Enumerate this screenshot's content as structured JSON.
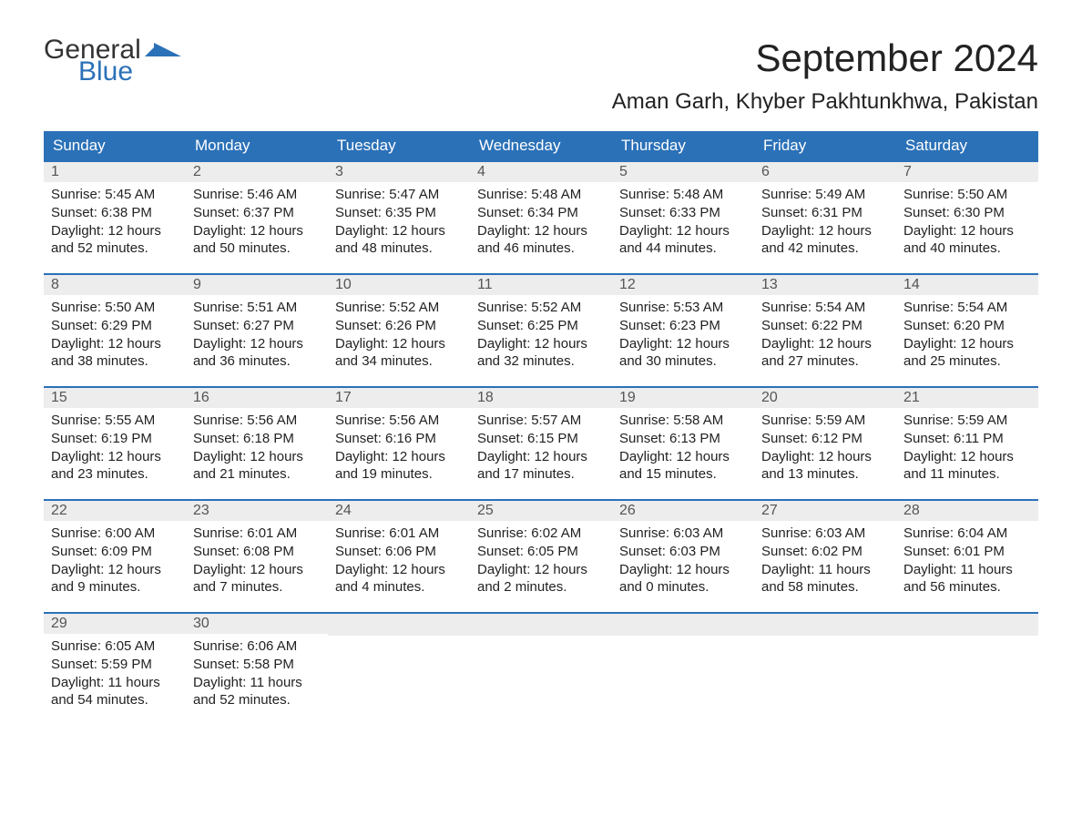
{
  "logo": {
    "general": "General",
    "blue": "Blue"
  },
  "title": "September 2024",
  "location": "Aman Garh, Khyber Pakhtunkhwa, Pakistan",
  "weekday_headers": [
    "Sunday",
    "Monday",
    "Tuesday",
    "Wednesday",
    "Thursday",
    "Friday",
    "Saturday"
  ],
  "colors": {
    "header_bg": "#2b71b8",
    "header_text": "#ffffff",
    "daynum_bg": "#ededed",
    "accent_border": "#2b71b8",
    "logo_blue": "#2b71b8"
  },
  "days": [
    {
      "n": "1",
      "sunrise": "5:45 AM",
      "sunset": "6:38 PM",
      "daylight": "12 hours and 52 minutes."
    },
    {
      "n": "2",
      "sunrise": "5:46 AM",
      "sunset": "6:37 PM",
      "daylight": "12 hours and 50 minutes."
    },
    {
      "n": "3",
      "sunrise": "5:47 AM",
      "sunset": "6:35 PM",
      "daylight": "12 hours and 48 minutes."
    },
    {
      "n": "4",
      "sunrise": "5:48 AM",
      "sunset": "6:34 PM",
      "daylight": "12 hours and 46 minutes."
    },
    {
      "n": "5",
      "sunrise": "5:48 AM",
      "sunset": "6:33 PM",
      "daylight": "12 hours and 44 minutes."
    },
    {
      "n": "6",
      "sunrise": "5:49 AM",
      "sunset": "6:31 PM",
      "daylight": "12 hours and 42 minutes."
    },
    {
      "n": "7",
      "sunrise": "5:50 AM",
      "sunset": "6:30 PM",
      "daylight": "12 hours and 40 minutes."
    },
    {
      "n": "8",
      "sunrise": "5:50 AM",
      "sunset": "6:29 PM",
      "daylight": "12 hours and 38 minutes."
    },
    {
      "n": "9",
      "sunrise": "5:51 AM",
      "sunset": "6:27 PM",
      "daylight": "12 hours and 36 minutes."
    },
    {
      "n": "10",
      "sunrise": "5:52 AM",
      "sunset": "6:26 PM",
      "daylight": "12 hours and 34 minutes."
    },
    {
      "n": "11",
      "sunrise": "5:52 AM",
      "sunset": "6:25 PM",
      "daylight": "12 hours and 32 minutes."
    },
    {
      "n": "12",
      "sunrise": "5:53 AM",
      "sunset": "6:23 PM",
      "daylight": "12 hours and 30 minutes."
    },
    {
      "n": "13",
      "sunrise": "5:54 AM",
      "sunset": "6:22 PM",
      "daylight": "12 hours and 27 minutes."
    },
    {
      "n": "14",
      "sunrise": "5:54 AM",
      "sunset": "6:20 PM",
      "daylight": "12 hours and 25 minutes."
    },
    {
      "n": "15",
      "sunrise": "5:55 AM",
      "sunset": "6:19 PM",
      "daylight": "12 hours and 23 minutes."
    },
    {
      "n": "16",
      "sunrise": "5:56 AM",
      "sunset": "6:18 PM",
      "daylight": "12 hours and 21 minutes."
    },
    {
      "n": "17",
      "sunrise": "5:56 AM",
      "sunset": "6:16 PM",
      "daylight": "12 hours and 19 minutes."
    },
    {
      "n": "18",
      "sunrise": "5:57 AM",
      "sunset": "6:15 PM",
      "daylight": "12 hours and 17 minutes."
    },
    {
      "n": "19",
      "sunrise": "5:58 AM",
      "sunset": "6:13 PM",
      "daylight": "12 hours and 15 minutes."
    },
    {
      "n": "20",
      "sunrise": "5:59 AM",
      "sunset": "6:12 PM",
      "daylight": "12 hours and 13 minutes."
    },
    {
      "n": "21",
      "sunrise": "5:59 AM",
      "sunset": "6:11 PM",
      "daylight": "12 hours and 11 minutes."
    },
    {
      "n": "22",
      "sunrise": "6:00 AM",
      "sunset": "6:09 PM",
      "daylight": "12 hours and 9 minutes."
    },
    {
      "n": "23",
      "sunrise": "6:01 AM",
      "sunset": "6:08 PM",
      "daylight": "12 hours and 7 minutes."
    },
    {
      "n": "24",
      "sunrise": "6:01 AM",
      "sunset": "6:06 PM",
      "daylight": "12 hours and 4 minutes."
    },
    {
      "n": "25",
      "sunrise": "6:02 AM",
      "sunset": "6:05 PM",
      "daylight": "12 hours and 2 minutes."
    },
    {
      "n": "26",
      "sunrise": "6:03 AM",
      "sunset": "6:03 PM",
      "daylight": "12 hours and 0 minutes."
    },
    {
      "n": "27",
      "sunrise": "6:03 AM",
      "sunset": "6:02 PM",
      "daylight": "11 hours and 58 minutes."
    },
    {
      "n": "28",
      "sunrise": "6:04 AM",
      "sunset": "6:01 PM",
      "daylight": "11 hours and 56 minutes."
    },
    {
      "n": "29",
      "sunrise": "6:05 AM",
      "sunset": "5:59 PM",
      "daylight": "11 hours and 54 minutes."
    },
    {
      "n": "30",
      "sunrise": "6:06 AM",
      "sunset": "5:58 PM",
      "daylight": "11 hours and 52 minutes."
    }
  ],
  "labels": {
    "sunrise": "Sunrise:",
    "sunset": "Sunset:",
    "daylight": "Daylight:"
  },
  "layout": {
    "start_weekday_index": 0,
    "days_in_month": 30,
    "columns": 7
  }
}
